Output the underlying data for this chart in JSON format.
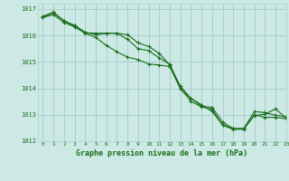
{
  "title": "Graphe pression niveau de la mer (hPa)",
  "background_color": "#cce9e5",
  "grid_color": "#a8d0cc",
  "line_color": "#1a6e1a",
  "xlim": [
    -0.5,
    23
  ],
  "ylim": [
    1012,
    1017.2
  ],
  "yticks": [
    1012,
    1013,
    1014,
    1015,
    1016,
    1017
  ],
  "xticks": [
    0,
    1,
    2,
    3,
    4,
    5,
    6,
    7,
    8,
    9,
    10,
    11,
    12,
    13,
    14,
    15,
    16,
    17,
    18,
    19,
    20,
    21,
    22,
    23
  ],
  "series": [
    [
      1016.7,
      1016.85,
      1016.55,
      1016.35,
      1016.1,
      1016.08,
      1016.08,
      1016.08,
      1015.85,
      1015.5,
      1015.42,
      1015.15,
      1014.9,
      1014.0,
      1013.5,
      1013.3,
      1013.2,
      1012.6,
      1012.45,
      1012.45,
      1013.0,
      1012.9,
      1012.9,
      1012.85
    ],
    [
      1016.72,
      1016.88,
      1016.55,
      1016.38,
      1016.12,
      1016.02,
      1016.08,
      1016.08,
      1016.02,
      1015.72,
      1015.58,
      1015.32,
      1014.88,
      1014.08,
      1013.62,
      1013.32,
      1013.28,
      1012.72,
      1012.48,
      1012.48,
      1013.12,
      1013.08,
      1012.98,
      1012.92
    ],
    [
      1016.68,
      1016.78,
      1016.48,
      1016.32,
      1016.08,
      1015.92,
      1015.62,
      1015.38,
      1015.18,
      1015.08,
      1014.92,
      1014.88,
      1014.82,
      1013.98,
      1013.62,
      1013.38,
      1013.12,
      1012.62,
      1012.47,
      1012.47,
      1012.97,
      1013.02,
      1013.22,
      1012.88
    ]
  ]
}
